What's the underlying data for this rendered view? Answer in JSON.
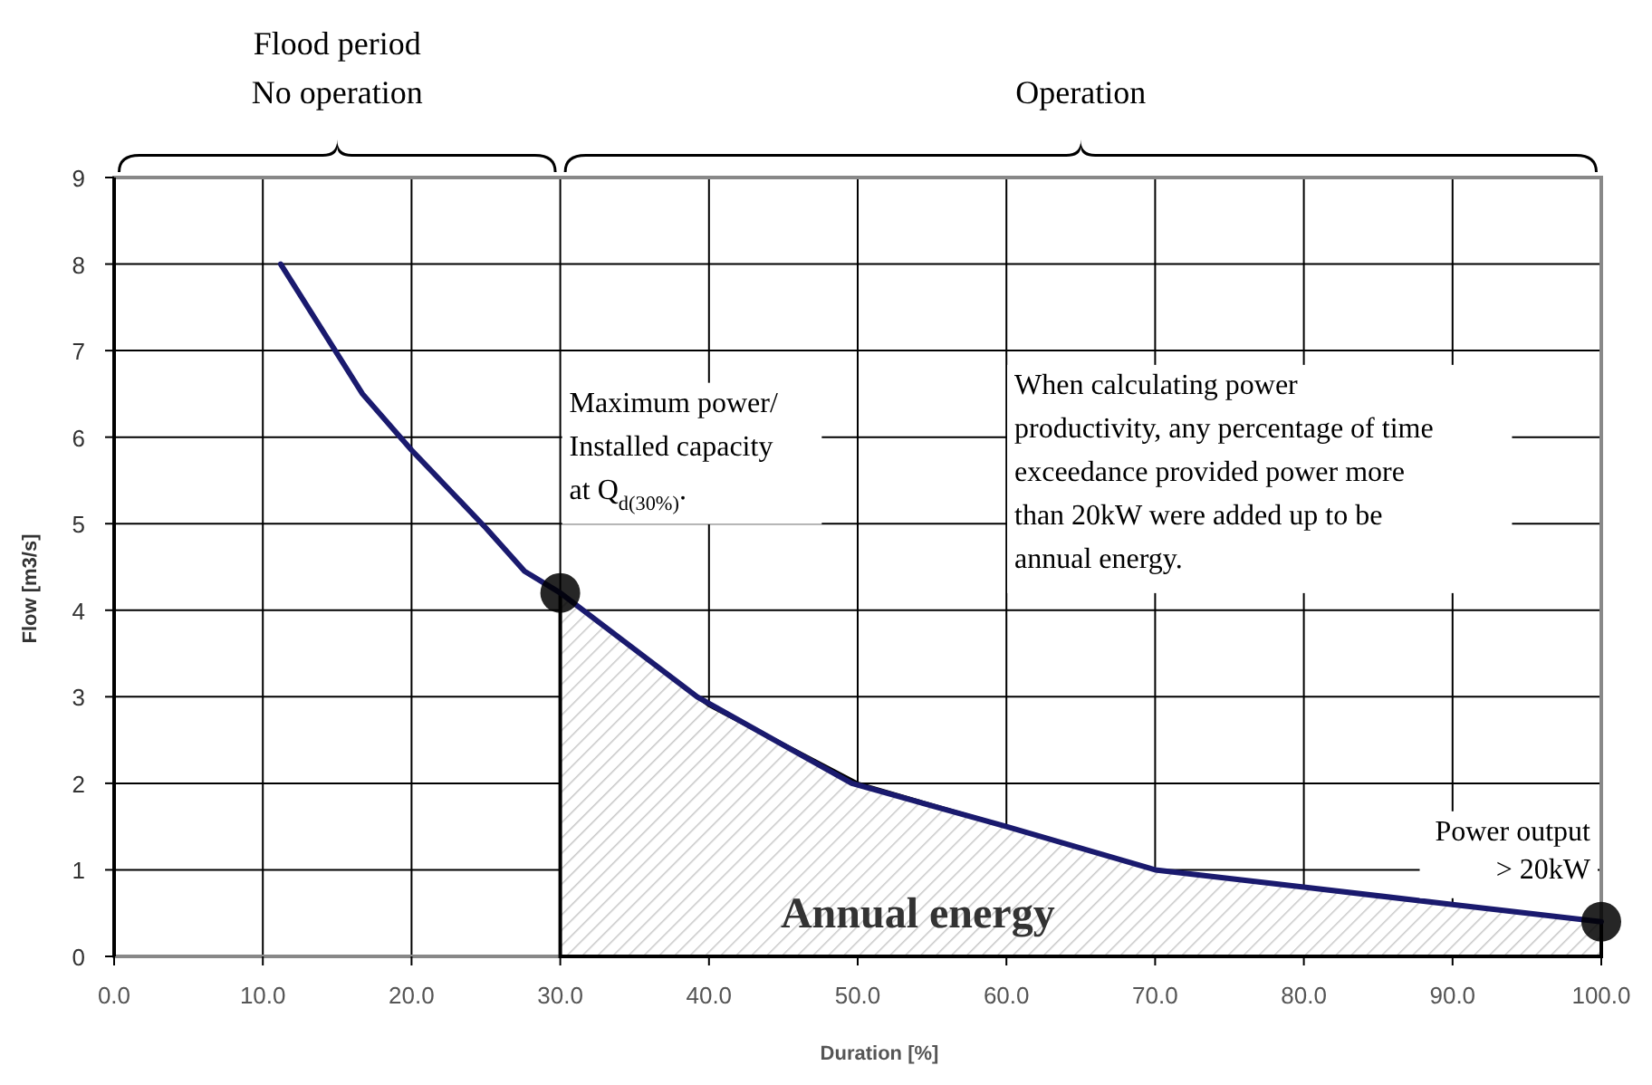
{
  "chart_data": {
    "type": "line",
    "xlabel": "Duration [%]",
    "ylabel": "Flow [m3/s]",
    "xlim": [
      0,
      100
    ],
    "ylim": [
      0,
      9
    ],
    "xticks": [
      {
        "value": 0,
        "label": "0.0"
      },
      {
        "value": 10,
        "label": "10.0"
      },
      {
        "value": 20,
        "label": "20.0"
      },
      {
        "value": 30,
        "label": "30.0"
      },
      {
        "value": 40,
        "label": "40.0"
      },
      {
        "value": 50,
        "label": "50.0"
      },
      {
        "value": 60,
        "label": "60.0"
      },
      {
        "value": 70,
        "label": "70.0"
      },
      {
        "value": 80,
        "label": "80.0"
      },
      {
        "value": 90,
        "label": "90.0"
      },
      {
        "value": 100,
        "label": "100.0"
      }
    ],
    "yticks": [
      0,
      1,
      2,
      3,
      4,
      5,
      6,
      7,
      8,
      9
    ],
    "grid": true,
    "series": [
      {
        "type": "area",
        "color": "#000000",
        "x": [
          30,
          40,
          50,
          60,
          70,
          80,
          90,
          100
        ],
        "values": [
          4.2,
          2.9,
          2.0,
          1.5,
          1.0,
          0.8,
          0.6,
          0.4
        ]
      },
      {
        "type": "line",
        "color": "#1a1a6e",
        "x": [
          11.2,
          16.7,
          20,
          25,
          27.6,
          30,
          39.2,
          49.6,
          60,
          70,
          80,
          90,
          100
        ],
        "values": [
          8.0,
          6.5,
          5.85,
          4.95,
          4.45,
          4.2,
          3.0,
          2.0,
          1.5,
          1.0,
          0.8,
          0.6,
          0.4
        ]
      },
      {
        "type": "scatter",
        "color": "#000000",
        "x": [
          30,
          100
        ],
        "values": [
          4.2,
          0.4
        ]
      }
    ],
    "annotations": [
      {
        "text": "Maximum power/\nInstalled capacity\nat Q$_{d(30%)}$.",
        "x": 30,
        "y": 4.2
      },
      {
        "text": "Power output\n> 20kW",
        "x": 100,
        "y": 0.4
      },
      "Annual energy",
      "When calculating power\nproductivity, any percentage of time\nexceedance provided power more\nthan 20kW were added up to be\nannual energy.",
      "Flood period\nNo operation",
      "Operation"
    ]
  }
}
